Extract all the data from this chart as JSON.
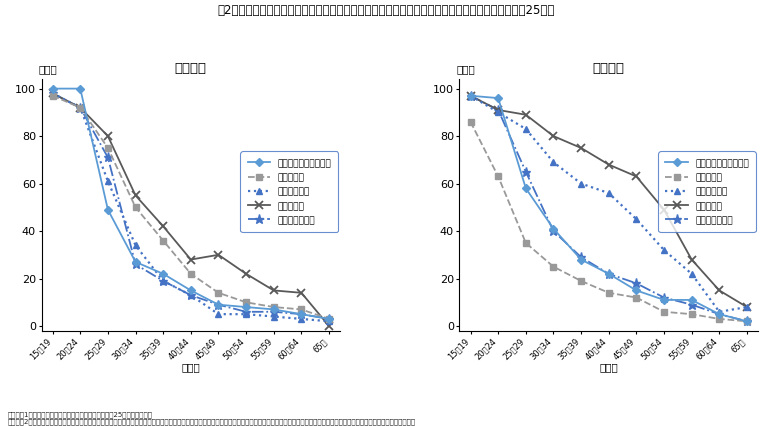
{
  "title": "第2図　就業状態（従業上の地位及び雇用形態）別に見た年齢階級別未婚者の割合（男女別、平成25年）",
  "female_title": "＜女性＞",
  "male_title": "＜男性＞",
  "ylabel": "（％）",
  "xlabel": "（歳）",
  "x_labels": [
    "15～19",
    "20～24",
    "25～29",
    "30～34",
    "35～39",
    "40～44",
    "45～49",
    "50～54",
    "55～59",
    "60～64",
    "65～"
  ],
  "label_self": "自営業主・家族従業者",
  "label_regular": "正規雇用者",
  "label_irregular": "非正規雇用者",
  "label_unemployed": "完全失業者",
  "label_female_total": "女性就業者全体",
  "label_male_total": "男性就業者全体",
  "note1": "（備考）1．総務省「労働力調査（基本集計）」（平成25年）より作成。",
  "note2": "　　　　2．正規雇用者は、「正規の職員・従業員」と「役員」の合計であり、「役員」は「雇用者」から「役員を除く雇用者」を減じることによって算出している。非正規雇用者は、「非正規の職員・従業員」。",
  "female_self_employed": [
    100,
    100,
    49,
    27,
    22,
    15,
    9,
    8,
    7,
    5,
    3
  ],
  "female_regular": [
    97,
    92,
    75,
    50,
    36,
    22,
    14,
    10,
    8,
    7,
    3
  ],
  "female_irregular": [
    98,
    92,
    61,
    34,
    19,
    13,
    5,
    5,
    4,
    3,
    2
  ],
  "female_unemployed": [
    98,
    92,
    80,
    55,
    42,
    28,
    30,
    22,
    15,
    14,
    0
  ],
  "female_total": [
    98,
    92,
    71,
    26,
    19,
    13,
    9,
    6,
    6,
    5,
    3
  ],
  "male_self_employed": [
    97,
    96,
    58,
    41,
    28,
    22,
    15,
    11,
    11,
    5,
    2
  ],
  "male_regular": [
    86,
    63,
    35,
    25,
    19,
    14,
    12,
    6,
    5,
    3,
    2
  ],
  "male_irregular": [
    97,
    90,
    83,
    69,
    60,
    56,
    45,
    32,
    22,
    6,
    8
  ],
  "male_unemployed": [
    97,
    91,
    89,
    80,
    75,
    68,
    63,
    49,
    28,
    15,
    8
  ],
  "male_total": [
    97,
    91,
    65,
    40,
    29,
    22,
    18,
    12,
    9,
    5,
    2
  ],
  "color_self": "#5b9bd5",
  "color_regular": "#999999",
  "color_irregular": "#4472c4",
  "color_unemployed": "#595959",
  "color_total": "#4472c4",
  "ylim": [
    0,
    100
  ],
  "yticks": [
    0,
    20,
    40,
    60,
    80,
    100
  ]
}
